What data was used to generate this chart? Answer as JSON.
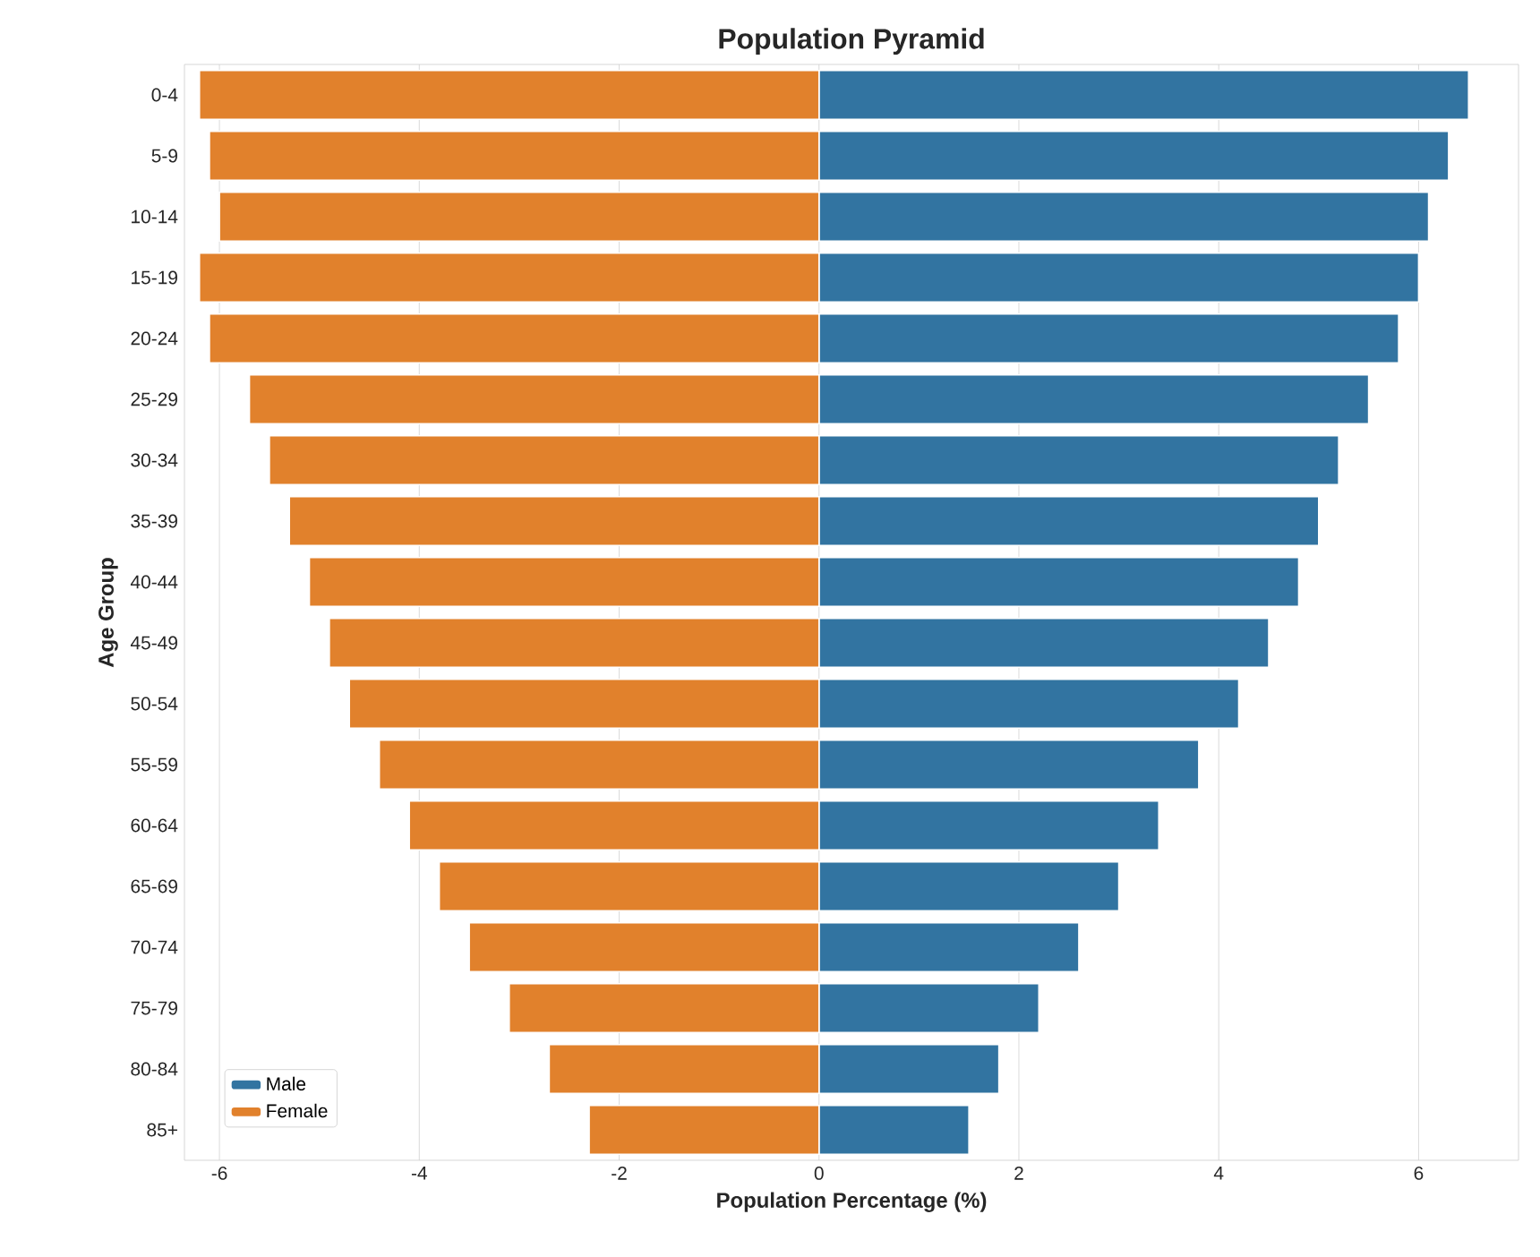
{
  "chart_data": {
    "type": "bar",
    "stacked": true,
    "orientation": "horizontal",
    "title": "Population Pyramid",
    "xlabel": "Population Percentage (%)",
    "ylabel": "Age Group",
    "categories": [
      "0-4",
      "5-9",
      "10-14",
      "15-19",
      "20-24",
      "25-29",
      "30-34",
      "35-39",
      "40-44",
      "45-49",
      "50-54",
      "55-59",
      "60-64",
      "65-69",
      "70-74",
      "75-79",
      "80-84",
      "85+"
    ],
    "series": [
      {
        "name": "Male",
        "color": "#3274a1",
        "values": [
          6.5,
          6.3,
          6.1,
          6.0,
          5.8,
          5.5,
          5.2,
          5.0,
          4.8,
          4.5,
          4.2,
          3.8,
          3.4,
          3.0,
          2.6,
          2.2,
          1.8,
          1.5
        ]
      },
      {
        "name": "Female",
        "color": "#e1812c",
        "values": [
          -6.2,
          -6.1,
          -6.0,
          -6.2,
          -6.1,
          -5.7,
          -5.5,
          -5.3,
          -5.1,
          -4.9,
          -4.7,
          -4.4,
          -4.1,
          -3.8,
          -3.5,
          -3.1,
          -2.7,
          -2.3
        ]
      }
    ],
    "xlim": [
      -6.35,
      7.0
    ],
    "xticks": [
      -6,
      -4,
      -2,
      0,
      2,
      4,
      6
    ],
    "grid": "x",
    "legend": "bottom left"
  }
}
